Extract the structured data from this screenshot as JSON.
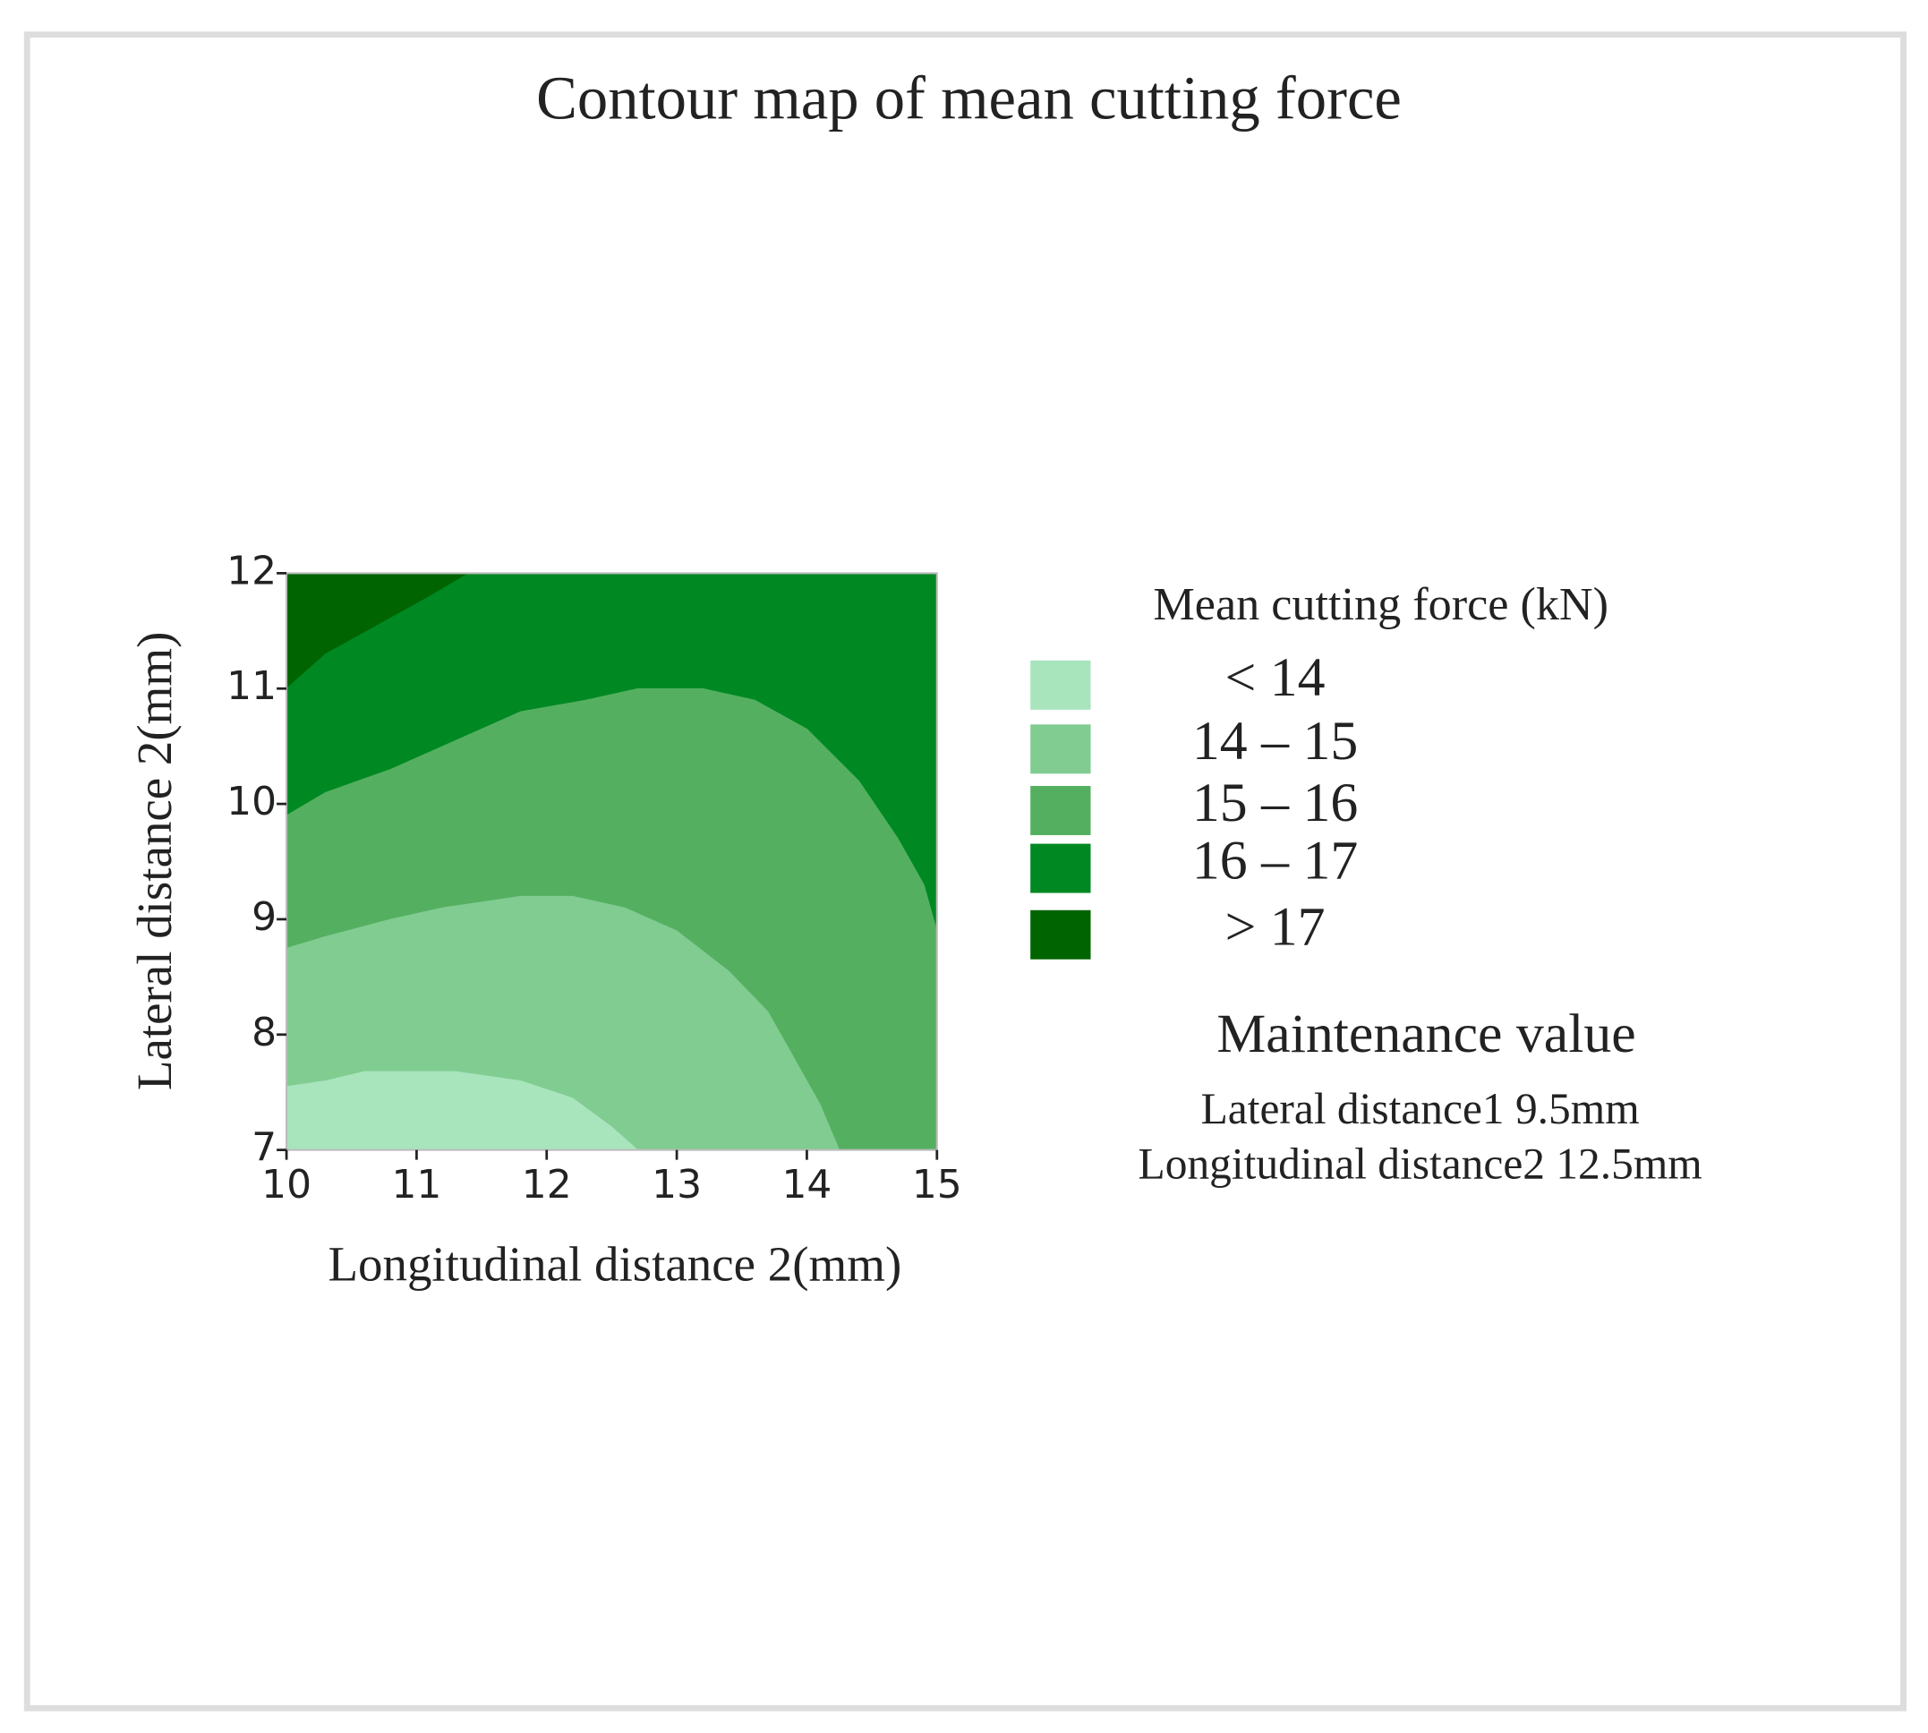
{
  "chart_data": {
    "type": "contour",
    "title": "Contour map of mean cutting force",
    "x_label": "Longitudinal distance 2(mm)",
    "y_label": "Lateral distance 2(mm)",
    "xlim": [
      10,
      15
    ],
    "ylim": [
      7,
      12
    ],
    "xticks": [
      10,
      11,
      12,
      13,
      14,
      15
    ],
    "yticks": [
      7,
      8,
      9,
      10,
      11,
      12
    ],
    "legend_title": "Mean cutting force (kN)",
    "levels": [
      {
        "label": "< 14",
        "color": "#a8e4bc"
      },
      {
        "label": "14 – 15",
        "color": "#80cc91"
      },
      {
        "label": "15 – 16",
        "color": "#54b060"
      },
      {
        "label": "16 – 17",
        "color": "#008823"
      },
      {
        "label": "> 17",
        "color": "#006400"
      }
    ],
    "contours": [
      {
        "x": [
          10,
          10.3,
          10.6,
          11.3,
          11.8,
          12.2,
          12.5,
          12.7
        ],
        "y": [
          7.55,
          7.6,
          7.68,
          7.68,
          7.6,
          7.45,
          7.2,
          7
        ]
      },
      {
        "x": [
          10,
          10.3,
          10.8,
          11.2,
          11.8,
          12.2,
          12.6,
          13.0,
          13.4,
          13.7,
          13.9,
          14.1,
          14.25
        ],
        "y": [
          8.75,
          8.85,
          9.0,
          9.1,
          9.2,
          9.2,
          9.1,
          8.9,
          8.55,
          8.2,
          7.8,
          7.4,
          7
        ]
      },
      {
        "x": [
          10,
          10.3,
          10.8,
          11.3,
          11.8,
          12.3,
          12.7,
          13.2,
          13.6,
          14.0,
          14.4,
          14.7,
          14.9,
          15
        ],
        "y": [
          9.9,
          10.1,
          10.3,
          10.55,
          10.8,
          10.9,
          11.0,
          11.0,
          10.9,
          10.65,
          10.2,
          9.7,
          9.3,
          8.9
        ]
      },
      {
        "x": [
          10,
          10.3,
          10.7,
          11.1,
          11.4
        ],
        "y": [
          11,
          11.3,
          11.55,
          11.8,
          12
        ]
      }
    ],
    "annotations": {
      "heading": "Maintenance value",
      "lines": [
        "Lateral distance1  9.5mm",
        "Longitudinal distance2 12.5mm"
      ]
    }
  }
}
